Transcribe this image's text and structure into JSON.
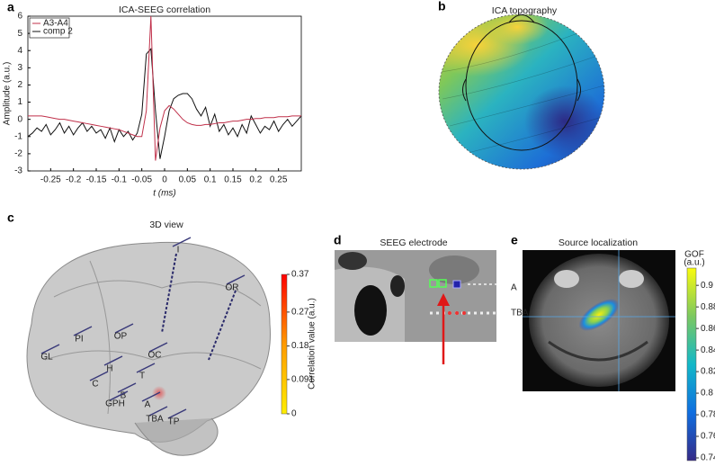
{
  "chart_data": {
    "type": "line",
    "panel_label": "a",
    "title": "ICA-SEEG correlation",
    "x_label": "t (ms)",
    "y_label": "Amplitude (a.u.)",
    "x": [
      -0.3,
      -0.29,
      -0.28,
      -0.27,
      -0.26,
      -0.25,
      -0.24,
      -0.23,
      -0.22,
      -0.21,
      -0.2,
      -0.19,
      -0.18,
      -0.17,
      -0.16,
      -0.15,
      -0.14,
      -0.13,
      -0.12,
      -0.11,
      -0.1,
      -0.09,
      -0.08,
      -0.07,
      -0.06,
      -0.05,
      -0.04,
      -0.03,
      -0.02,
      -0.01,
      0,
      0.01,
      0.02,
      0.03,
      0.04,
      0.05,
      0.06,
      0.07,
      0.08,
      0.09,
      0.1,
      0.11,
      0.12,
      0.13,
      0.14,
      0.15,
      0.16,
      0.17,
      0.18,
      0.19,
      0.2,
      0.21,
      0.22,
      0.23,
      0.24,
      0.25,
      0.26,
      0.27,
      0.28,
      0.29,
      0.3
    ],
    "series": [
      {
        "name": "A3-A4",
        "color": "#c0304a",
        "values": [
          0.2,
          0.2,
          0.2,
          0.2,
          0.15,
          0.1,
          0.05,
          0,
          0,
          -0.05,
          -0.1,
          -0.15,
          -0.2,
          -0.25,
          -0.3,
          -0.35,
          -0.4,
          -0.45,
          -0.5,
          -0.55,
          -0.6,
          -0.7,
          -0.8,
          -0.9,
          -1.0,
          -1.0,
          0.5,
          6.0,
          -2.4,
          -0.5,
          0.5,
          0.8,
          0.6,
          0.3,
          0,
          -0.2,
          -0.3,
          -0.35,
          -0.35,
          -0.3,
          -0.3,
          -0.25,
          -0.2,
          -0.2,
          -0.15,
          -0.1,
          -0.1,
          -0.05,
          0,
          0,
          0.05,
          0.05,
          0.1,
          0.1,
          0.1,
          0.15,
          0.15,
          0.15,
          0.2,
          0.2,
          0.2
        ]
      },
      {
        "name": "comp 2",
        "color": "#111111",
        "values": [
          -1.0,
          -0.8,
          -0.5,
          -0.7,
          -0.3,
          -0.9,
          -0.6,
          -0.2,
          -0.8,
          -0.4,
          -0.9,
          -0.5,
          -0.2,
          -0.7,
          -0.4,
          -0.8,
          -0.6,
          -1.1,
          -0.5,
          -1.3,
          -0.6,
          -1.0,
          -0.7,
          -1.2,
          -0.8,
          0.3,
          3.8,
          4.1,
          0.5,
          -2.3,
          -1.0,
          0.5,
          1.2,
          1.4,
          1.5,
          1.5,
          1.2,
          0.6,
          0.2,
          0.7,
          -0.4,
          0.3,
          -0.7,
          -0.3,
          -0.9,
          -0.5,
          -1.0,
          -0.3,
          -0.8,
          0.2,
          -0.3,
          -0.8,
          -0.4,
          -0.6,
          -0.1,
          -0.7,
          -0.3,
          0,
          -0.4,
          -0.1,
          0.2
        ]
      }
    ],
    "xlim": [
      -0.3,
      0.3
    ],
    "ylim": [
      -3,
      6
    ],
    "xticks": [
      -0.25,
      -0.2,
      -0.15,
      -0.1,
      -0.05,
      0,
      0.05,
      0.1,
      0.15,
      0.2,
      0.25
    ],
    "yticks": [
      -3,
      -2,
      -1,
      0,
      1,
      2,
      3,
      4,
      5,
      6
    ],
    "legend": "upper left"
  },
  "panels": [
    {
      "label": "b",
      "title": "ICA topography"
    },
    {
      "label": "c",
      "title": "3D view",
      "electrodes": [
        "I",
        "OR",
        "PI",
        "OP",
        "OC",
        "GL",
        "H",
        "T",
        "C",
        "B",
        "GPH",
        "A",
        "TBA",
        "TP"
      ],
      "colorbar": {
        "label": "Correlation value (a.u.)",
        "lim": [
          0,
          0.37
        ],
        "ticks": [
          0.37,
          0.27,
          0.18,
          0.091,
          0
        ],
        "colors": [
          "#ffee00",
          "#ff9a00",
          "#ff0000"
        ]
      }
    },
    {
      "label": "d",
      "title": "SEEG electrode",
      "annotations": [
        "A",
        "TBA"
      ]
    },
    {
      "label": "e",
      "title": "Source localization",
      "colorbar": {
        "label": [
          "GOF",
          "(a.u.)"
        ],
        "lim": [
          0.7375,
          0.916
        ],
        "ticks": [
          0.9,
          0.88,
          0.86,
          0.84,
          0.82,
          0.8,
          0.78,
          0.76,
          0.74
        ],
        "colors": [
          "#352a87",
          "#0f6ee0",
          "#12b8c8",
          "#7cc860",
          "#f9fb0e"
        ]
      }
    }
  ]
}
